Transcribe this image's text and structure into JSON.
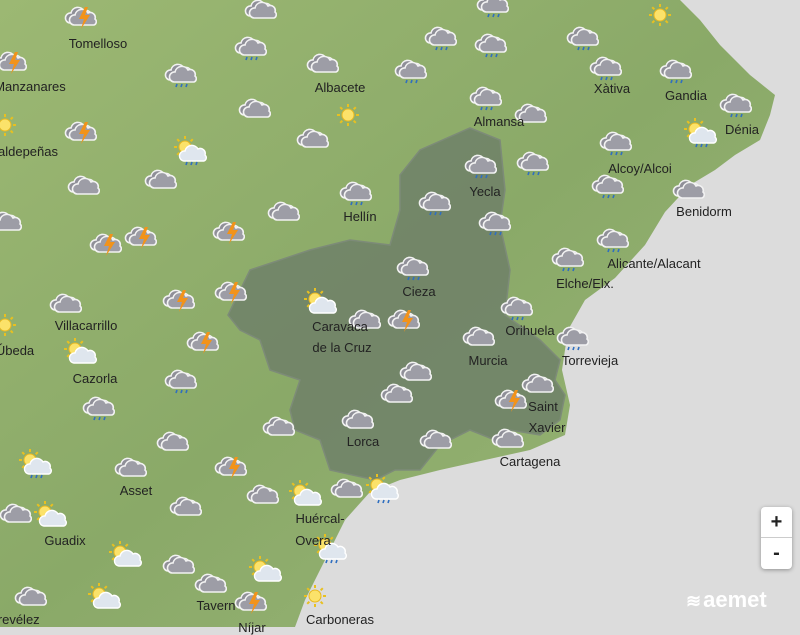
{
  "map": {
    "colors": {
      "sea": "#dcdcdc",
      "land": "#8fae6a",
      "region": "#6f8068",
      "region_border": "#7d8b78"
    },
    "highlighted_region": "Región de Murcia",
    "icons": [
      "storm",
      "cloud",
      "rain",
      "sun",
      "storm",
      "rain",
      "rain",
      "cloud",
      "rain",
      "rain",
      "rain",
      "rain",
      "rain",
      "rain",
      "rain",
      "rain",
      "cloud",
      "cloud",
      "sun",
      "storm",
      "sun",
      "sun-cloud-rain",
      "cloud",
      "sun-cloud-rain",
      "rain",
      "cloud",
      "cloud",
      "rain",
      "rain",
      "rain",
      "cloud",
      "rain",
      "rain",
      "cloud",
      "cloud",
      "rain",
      "storm",
      "storm",
      "storm",
      "rain",
      "rain",
      "rain",
      "cloud",
      "storm",
      "storm",
      "sun-cloud",
      "rain",
      "cloud",
      "storm",
      "sun",
      "storm",
      "cloud",
      "sun-cloud",
      "rain",
      "cloud",
      "rain",
      "cloud",
      "rain",
      "cloud",
      "storm",
      "cloud",
      "cloud",
      "cloud",
      "cloud",
      "cloud",
      "sun-cloud-rain",
      "cloud",
      "storm",
      "cloud",
      "sun-cloud-rain",
      "cloud",
      "sun-cloud",
      "cloud",
      "sun-cloud",
      "cloud",
      "sun-cloud",
      "cloud",
      "sun-cloud-rain",
      "sun-cloud",
      "cloud",
      "cloud",
      "sun-cloud",
      "storm",
      "sun"
    ],
    "places": [
      "Tomelloso",
      "Manzanares",
      "Albacete",
      "Almansa",
      "Xàtiva",
      "Gandia",
      "Dénia",
      "aldepeñas",
      "Alcoy/Alcoi",
      "Yecla",
      "Benidorm",
      "Hellín",
      "Alicante/Alacant",
      "Elche/Elx.",
      "Cieza",
      "Villacarrillo",
      "Caravaca",
      "de la Cruz",
      "Orihuela",
      "Úbeda",
      "Murcia",
      "Torrevieja",
      "Cazorla",
      "Saint",
      "Xavier",
      "Lorca",
      "Cartagena",
      "Asset",
      "Huércal-",
      "Overa",
      "Guadix",
      "Trevélez",
      "Tavern",
      "Níjar",
      "Carboneras"
    ]
  },
  "controls": {
    "zoom_in": "+",
    "zoom_out": "-"
  },
  "logo": {
    "text": "aemet"
  }
}
